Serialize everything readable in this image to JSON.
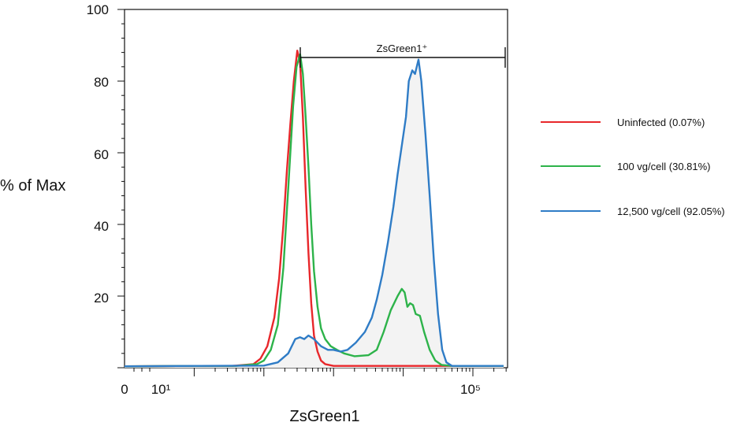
{
  "chart_data": {
    "type": "line",
    "title": "",
    "xlabel": "ZsGreen1",
    "ylabel": "% of Max",
    "ylim": [
      0,
      100
    ],
    "x_scale": "biexponential",
    "x_tick_labels": [
      "0",
      "10¹",
      "10⁵"
    ],
    "y_ticks": [
      0,
      20,
      40,
      60,
      80,
      100
    ],
    "y_tick_labels": [
      "20",
      "40",
      "60",
      "80",
      "100"
    ],
    "grid": false,
    "legend_position": "right",
    "gate": {
      "label": "ZsGreen1⁺",
      "x_from_log10": 3.04,
      "x_to_log10": 5.44,
      "y": 86
    },
    "x_unit_note": "x values below are log10(ZsGreen1 intensity)",
    "series": [
      {
        "name": "Uninfected (0.07%)",
        "color": "#e8272b",
        "fill": false,
        "points": [
          [
            0.0,
            0.4
          ],
          [
            1.0,
            0.5
          ],
          [
            1.55,
            0.5
          ],
          [
            1.85,
            1.0
          ],
          [
            1.95,
            2.5
          ],
          [
            2.05,
            6
          ],
          [
            2.15,
            14
          ],
          [
            2.22,
            25
          ],
          [
            2.28,
            40
          ],
          [
            2.33,
            55
          ],
          [
            2.38,
            68
          ],
          [
            2.43,
            80
          ],
          [
            2.48,
            88.5
          ],
          [
            2.52,
            85
          ],
          [
            2.56,
            70
          ],
          [
            2.6,
            50
          ],
          [
            2.64,
            32
          ],
          [
            2.68,
            18
          ],
          [
            2.72,
            9
          ],
          [
            2.77,
            4.5
          ],
          [
            2.82,
            2
          ],
          [
            2.88,
            1
          ],
          [
            3.0,
            0.5
          ],
          [
            3.5,
            0.5
          ],
          [
            4.5,
            0.5
          ],
          [
            5.44,
            0.5
          ]
        ]
      },
      {
        "name": "100 vg/cell (30.81%)",
        "color": "#2db34a",
        "fill": false,
        "points": [
          [
            0.0,
            0.4
          ],
          [
            1.0,
            0.5
          ],
          [
            1.6,
            0.5
          ],
          [
            1.9,
            1.0
          ],
          [
            2.0,
            2.0
          ],
          [
            2.1,
            5
          ],
          [
            2.2,
            12
          ],
          [
            2.28,
            28
          ],
          [
            2.35,
            50
          ],
          [
            2.42,
            73
          ],
          [
            2.47,
            84
          ],
          [
            2.52,
            87.5
          ],
          [
            2.56,
            82
          ],
          [
            2.6,
            70
          ],
          [
            2.64,
            56
          ],
          [
            2.68,
            40
          ],
          [
            2.72,
            27
          ],
          [
            2.77,
            17
          ],
          [
            2.82,
            11
          ],
          [
            2.88,
            8
          ],
          [
            2.96,
            6
          ],
          [
            3.05,
            5
          ],
          [
            3.15,
            4
          ],
          [
            3.3,
            3.2
          ],
          [
            3.5,
            3.5
          ],
          [
            3.62,
            5
          ],
          [
            3.72,
            10
          ],
          [
            3.82,
            16
          ],
          [
            3.92,
            20
          ],
          [
            3.98,
            22
          ],
          [
            4.02,
            21
          ],
          [
            4.06,
            17
          ],
          [
            4.1,
            18
          ],
          [
            4.14,
            17.5
          ],
          [
            4.18,
            15
          ],
          [
            4.24,
            14.5
          ],
          [
            4.3,
            10
          ],
          [
            4.38,
            5
          ],
          [
            4.46,
            2
          ],
          [
            4.55,
            0.8
          ],
          [
            4.7,
            0.5
          ],
          [
            5.44,
            0.5
          ]
        ]
      },
      {
        "name": "12,500 vg/cell (92.05%)",
        "color": "#2f7cc6",
        "fill": true,
        "points": [
          [
            0.0,
            0.4
          ],
          [
            1.0,
            0.5
          ],
          [
            2.0,
            0.6
          ],
          [
            2.2,
            1.5
          ],
          [
            2.35,
            4
          ],
          [
            2.45,
            8
          ],
          [
            2.52,
            8.5
          ],
          [
            2.58,
            8
          ],
          [
            2.64,
            9
          ],
          [
            2.72,
            8
          ],
          [
            2.82,
            6
          ],
          [
            2.92,
            5
          ],
          [
            3.0,
            5
          ],
          [
            3.1,
            4.5
          ],
          [
            3.2,
            5
          ],
          [
            3.32,
            7
          ],
          [
            3.45,
            10
          ],
          [
            3.55,
            14
          ],
          [
            3.62,
            19
          ],
          [
            3.7,
            26
          ],
          [
            3.78,
            35
          ],
          [
            3.86,
            45
          ],
          [
            3.92,
            54
          ],
          [
            3.98,
            62
          ],
          [
            4.04,
            70
          ],
          [
            4.08,
            80
          ],
          [
            4.13,
            83
          ],
          [
            4.17,
            82
          ],
          [
            4.22,
            86
          ],
          [
            4.26,
            80
          ],
          [
            4.32,
            65
          ],
          [
            4.38,
            48
          ],
          [
            4.44,
            30
          ],
          [
            4.5,
            15
          ],
          [
            4.56,
            5
          ],
          [
            4.62,
            1.5
          ],
          [
            4.7,
            0.5
          ],
          [
            5.44,
            0.5
          ]
        ]
      }
    ]
  }
}
